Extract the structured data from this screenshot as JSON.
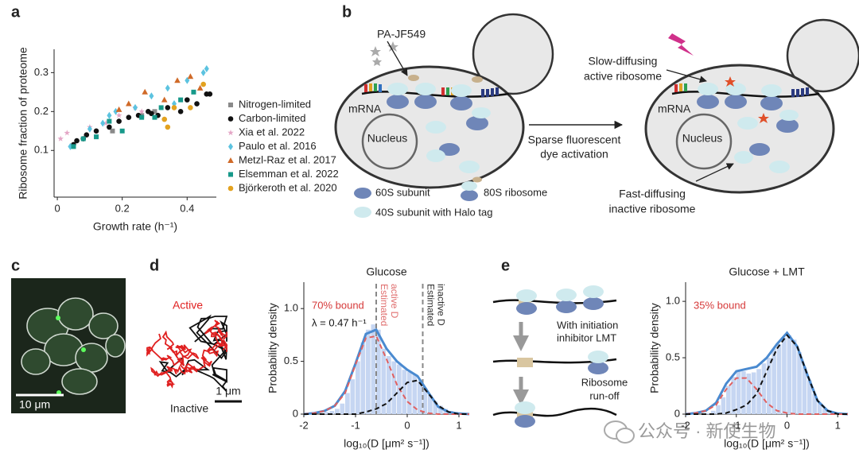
{
  "panel_labels": [
    "a",
    "b",
    "c",
    "d",
    "e"
  ],
  "chart_data": [
    {
      "type": "scatter",
      "ylabel": "Ribosome fraction of proteome",
      "xlabel": "Growth rate (h⁻¹)",
      "xlim": [
        -0.01,
        0.49
      ],
      "ylim": [
        -0.02,
        0.36
      ],
      "xticks": [
        0,
        0.2,
        0.4
      ],
      "yticks": [
        0.1,
        0.2,
        0.3
      ],
      "series": [
        {
          "name": "Nitrogen-limited",
          "color": "#8a8a8a",
          "marker": "square",
          "x": [
            0.17,
            0.26,
            0.3
          ],
          "values": [
            0.15,
            0.19,
            0.2
          ]
        },
        {
          "name": "Carbon-limited",
          "color": "#111111",
          "marker": "circle",
          "x": [
            0.05,
            0.06,
            0.08,
            0.09,
            0.12,
            0.16,
            0.19,
            0.22,
            0.25,
            0.28,
            0.29,
            0.31,
            0.34,
            0.38,
            0.4,
            0.43,
            0.46,
            0.47
          ],
          "values": [
            0.115,
            0.125,
            0.13,
            0.14,
            0.15,
            0.16,
            0.175,
            0.185,
            0.19,
            0.2,
            0.195,
            0.19,
            0.21,
            0.2,
            0.23,
            0.22,
            0.245,
            0.245
          ]
        },
        {
          "name": "Xia et al. 2022",
          "color": "#e4a6c6",
          "marker": "star",
          "x": [
            0.01,
            0.03,
            0.1,
            0.15,
            0.19,
            0.24,
            0.26
          ],
          "values": [
            0.13,
            0.145,
            0.16,
            0.17,
            0.19,
            0.21,
            0.2
          ]
        },
        {
          "name": "Paulo et al. 2016",
          "color": "#5cc3e0",
          "marker": "diamond",
          "x": [
            0.04,
            0.1,
            0.14,
            0.16,
            0.18,
            0.24,
            0.29,
            0.34,
            0.36,
            0.4,
            0.45,
            0.46
          ],
          "values": [
            0.11,
            0.155,
            0.17,
            0.19,
            0.2,
            0.21,
            0.24,
            0.26,
            0.22,
            0.28,
            0.3,
            0.31
          ]
        },
        {
          "name": "Metzl-Raz et al. 2017",
          "color": "#d06a28",
          "marker": "triangle",
          "x": [
            0.19,
            0.22,
            0.27,
            0.33,
            0.37,
            0.41,
            0.44
          ],
          "values": [
            0.205,
            0.22,
            0.25,
            0.23,
            0.28,
            0.29,
            0.26
          ]
        },
        {
          "name": "Elsemman et al. 2022",
          "color": "#17998a",
          "marker": "square",
          "x": [
            0.05,
            0.08,
            0.12,
            0.16,
            0.2,
            0.26,
            0.3,
            0.32,
            0.38,
            0.42
          ],
          "values": [
            0.11,
            0.13,
            0.135,
            0.175,
            0.15,
            0.185,
            0.185,
            0.21,
            0.23,
            0.25
          ]
        },
        {
          "name": "Björkeroth et al. 2020",
          "color": "#e3a21f",
          "marker": "circle",
          "x": [
            0.33,
            0.34,
            0.36,
            0.41,
            0.45
          ],
          "values": [
            0.18,
            0.16,
            0.21,
            0.21,
            0.27
          ]
        }
      ]
    },
    {
      "type": "histogram",
      "title": "Glucose",
      "xlabel": "log₁₀(D [μm² s⁻¹])",
      "ylabel": "Probability density",
      "xlim": [
        -2,
        1.2
      ],
      "ylim": [
        0,
        1.25
      ],
      "xticks": [
        -2,
        -1,
        0,
        1
      ],
      "yticks": [
        0,
        0.5,
        {
          "value": 1,
          "label": "1.0"
        }
      ],
      "bar_color": "#c6d6f2",
      "bins": [
        -1.6,
        -1.5,
        -1.4,
        -1.3,
        -1.2,
        -1.1,
        -1,
        -0.9,
        -0.8,
        -0.7,
        -0.6,
        -0.5,
        -0.4,
        -0.3,
        -0.2,
        -0.1,
        0,
        0.1,
        0.2,
        0.3,
        0.4,
        0.5,
        0.6,
        0.7,
        0.8,
        0.9,
        1,
        1.1
      ],
      "counts": [
        0.02,
        0.03,
        0.05,
        0.1,
        0.2,
        0.33,
        0.5,
        0.68,
        0.8,
        0.85,
        0.8,
        0.62,
        0.55,
        0.5,
        0.47,
        0.42,
        0.4,
        0.38,
        0.32,
        0.25,
        0.18,
        0.12,
        0.08,
        0.05,
        0.03,
        0.02,
        0.01
      ],
      "curves": {
        "x": [
          -2,
          -1.8,
          -1.6,
          -1.4,
          -1.2,
          -1,
          -0.8,
          -0.6,
          -0.4,
          -0.2,
          0,
          0.2,
          0.4,
          0.6,
          0.8,
          1,
          1.2
        ],
        "series": [
          {
            "color": "#4a8ad0",
            "style": "solid",
            "values": [
              0,
              0.01,
              0.03,
              0.08,
              0.22,
              0.48,
              0.76,
              0.8,
              0.62,
              0.5,
              0.42,
              0.36,
              0.21,
              0.07,
              0.02,
              0.005,
              0
            ]
          },
          {
            "color": "#e06060",
            "style": "dashed",
            "values": [
              0,
              0.01,
              0.03,
              0.08,
              0.2,
              0.47,
              0.72,
              0.74,
              0.52,
              0.28,
              0.12,
              0.04,
              0.01,
              0,
              0,
              0,
              0
            ]
          },
          {
            "color": "#111111",
            "style": "dashed",
            "values": [
              0,
              0,
              0,
              0,
              0,
              0,
              0.02,
              0.05,
              0.1,
              0.2,
              0.3,
              0.32,
              0.2,
              0.08,
              0.02,
              0,
              0
            ]
          }
        ]
      },
      "vlines": [
        {
          "value": -0.6,
          "label": [
            "Estimated",
            "active D"
          ],
          "color": "#e07070"
        },
        {
          "value": 0.3,
          "label": [
            "Estimated",
            "inactive D"
          ],
          "color": "#333333"
        }
      ],
      "annotations": [
        {
          "text": "70% bound",
          "color": "#d63a3a"
        },
        {
          "text": "λ = 0.47 h⁻¹",
          "color": "#111111"
        }
      ]
    },
    {
      "type": "histogram",
      "title": "Glucose + LMT",
      "xlabel": "log₁₀(D [μm² s⁻¹])",
      "ylabel": "Probability density",
      "xlim": [
        -2,
        1.2
      ],
      "ylim": [
        0,
        1.17
      ],
      "xticks": [
        -2,
        -1,
        0,
        1
      ],
      "yticks": [
        0,
        0.5,
        {
          "value": 1,
          "label": "1.0"
        }
      ],
      "bar_color": "#c6d6f2",
      "bins": [
        -1.6,
        -1.5,
        -1.4,
        -1.3,
        -1.2,
        -1.1,
        -1,
        -0.9,
        -0.8,
        -0.7,
        -0.6,
        -0.5,
        -0.4,
        -0.3,
        -0.2,
        -0.1,
        0,
        0.1,
        0.2,
        0.3,
        0.4,
        0.5,
        0.6,
        0.7,
        0.8,
        0.9,
        1,
        1.1
      ],
      "counts": [
        0.01,
        0.03,
        0.08,
        0.15,
        0.25,
        0.33,
        0.38,
        0.38,
        0.36,
        0.37,
        0.4,
        0.45,
        0.5,
        0.58,
        0.62,
        0.68,
        0.7,
        0.66,
        0.55,
        0.42,
        0.3,
        0.18,
        0.1,
        0.05,
        0.02,
        0.01,
        0.005
      ],
      "curves": {
        "x": [
          -2,
          -1.8,
          -1.6,
          -1.4,
          -1.2,
          -1,
          -0.8,
          -0.6,
          -0.4,
          -0.2,
          0,
          0.2,
          0.4,
          0.6,
          0.8,
          1,
          1.2
        ],
        "series": [
          {
            "color": "#4a8ad0",
            "style": "solid",
            "values": [
              0,
              0.01,
              0.03,
              0.1,
              0.27,
              0.38,
              0.4,
              0.42,
              0.5,
              0.62,
              0.72,
              0.6,
              0.35,
              0.12,
              0.03,
              0.005,
              0
            ]
          },
          {
            "color": "#e06060",
            "style": "dashed",
            "values": [
              0,
              0.01,
              0.03,
              0.08,
              0.22,
              0.32,
              0.32,
              0.22,
              0.1,
              0.03,
              0.01,
              0,
              0,
              0,
              0,
              0,
              0
            ]
          },
          {
            "color": "#111111",
            "style": "dashed",
            "values": [
              0,
              0,
              0,
              0,
              0.01,
              0.04,
              0.08,
              0.18,
              0.38,
              0.58,
              0.7,
              0.6,
              0.35,
              0.12,
              0.03,
              0,
              0
            ]
          }
        ]
      },
      "vlines": [],
      "annotations": [
        {
          "text": "35% bound",
          "color": "#d63a3a"
        }
      ]
    }
  ],
  "diagram_b": {
    "dye": "PA-JF549",
    "mrna_left": "mRNA",
    "nucleus_left": "Nucleus",
    "legend": [
      "60S subunit",
      "80S ribosome",
      "40S subunit with Halo tag"
    ],
    "arrow_label": [
      "Sparse fluorescent",
      "dye activation"
    ],
    "slow": [
      "Slow-diffusing",
      "active ribosome"
    ],
    "mrna_right": "mRNA",
    "nucleus_right": "Nucleus",
    "fast": [
      "Fast-diffusing",
      "inactive ribosome"
    ]
  },
  "image_c": {
    "scale_bar": "10 μm"
  },
  "trajectory_d": {
    "active": "Active",
    "inactive": "Inactive",
    "scale_bar": "1 μm"
  },
  "diagram_e": {
    "step1": [
      "With initiation",
      "inhibitor LMT"
    ],
    "step2": [
      "Ribosome",
      "run-off"
    ]
  },
  "watermark": "公众号 · 新使生物"
}
